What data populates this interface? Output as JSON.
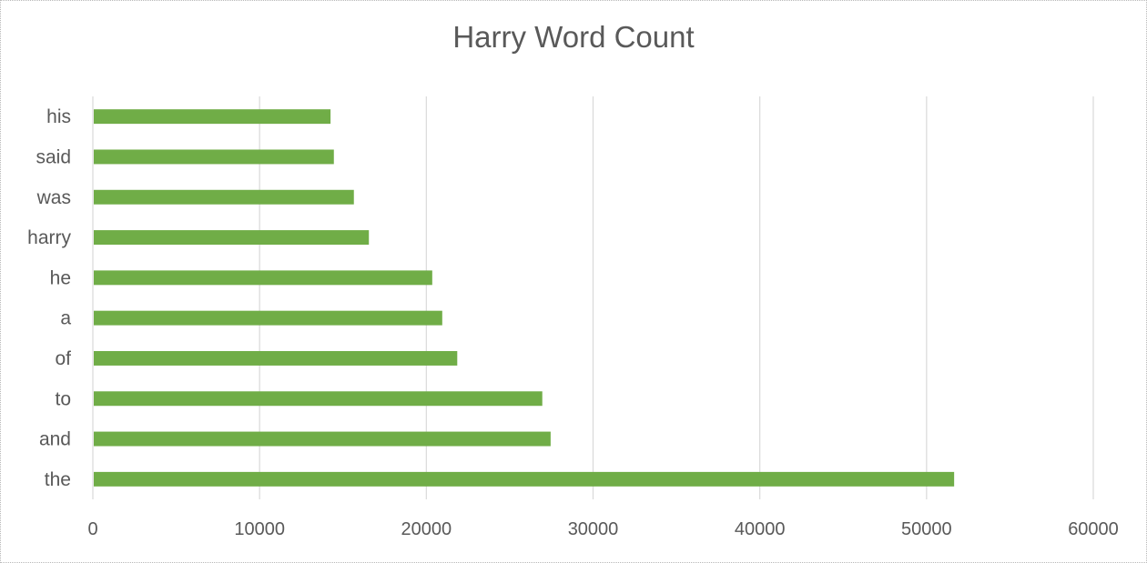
{
  "chart_data": {
    "type": "bar",
    "orientation": "horizontal",
    "title": "Harry Word Count",
    "categories": [
      "the",
      "and",
      "to",
      "of",
      "a",
      "he",
      "harry",
      "was",
      "said",
      "his"
    ],
    "values": [
      51600,
      27400,
      26900,
      21800,
      20900,
      20300,
      16500,
      15600,
      14400,
      14200
    ],
    "xlim": [
      0,
      60000
    ],
    "xticks": [
      "0",
      "10000",
      "20000",
      "30000",
      "40000",
      "50000",
      "60000"
    ],
    "grid": "vertical",
    "legend": "none",
    "bar_color": "#70ad47"
  }
}
